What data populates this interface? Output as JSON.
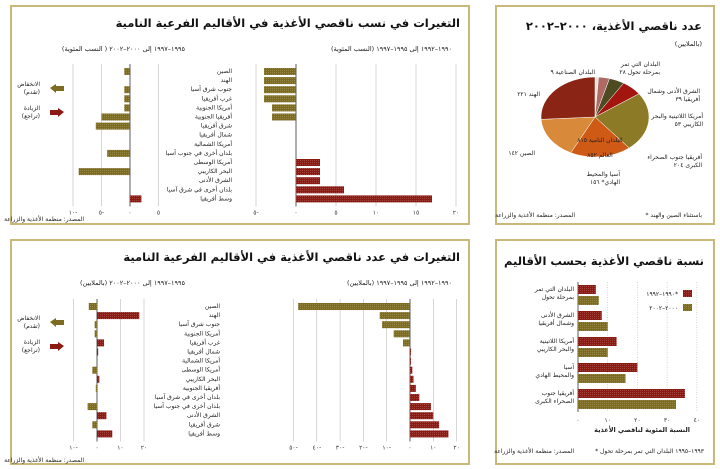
{
  "colors": {
    "increase": "#8b1a12",
    "decrease": "#7d6b1f",
    "border": "#c9b979"
  },
  "chart_data": [
    {
      "id": "pie",
      "type": "pie",
      "title": "عدد ناقصي الأغذية، ٢٠٠٠–٢٠٠٢",
      "subtitle": "(بالملايين)",
      "center_labels": [
        "البلدان النامية ٨١٥",
        "العالم ٨٥٢"
      ],
      "slices": [
        {
          "label": "البلدان الصناعية ٩",
          "value": 9,
          "color": "#e8e2d8"
        },
        {
          "label": "البلدان التي تمر بمرحلة تحول ٢٨",
          "value": 28,
          "color": "#b06a66"
        },
        {
          "label": "الشرق الأدنى وشمال أفريقيا ٣٩",
          "value": 39,
          "color": "#4e4a22"
        },
        {
          "label": "أمريكا اللاتينية والبحر الكاريبي ٥٣",
          "value": 53,
          "color": "#a3150f"
        },
        {
          "label": "أفريقيا جنوب الصحراء الكبرى ٢٠٤",
          "value": 204,
          "color": "#8c7a26"
        },
        {
          "label": "آسيا والمحيط الهادي* ١٥٦",
          "value": 156,
          "color": "#cf5a16"
        },
        {
          "label": "الصين ١٤٢",
          "value": 142,
          "color": "#d88a3a"
        },
        {
          "label": "الهند ٢٢١",
          "value": 221,
          "color": "#8a2414"
        }
      ],
      "footnote": "* باستثناء الصين والهند",
      "source": "المصدر: منظمة الأغذية والزراعة"
    },
    {
      "id": "proportion-changes",
      "type": "bar",
      "title": "التغيرات في نسب ناقصي الأغذية في الأقاليم الفرعية النامية",
      "categories": [
        "الصين",
        "الهند",
        "جنوب شرق آسيا",
        "غرب أفريقيا",
        "أمريكا الجنوبية",
        "أفريقيا الجنوبية",
        "شرق أفريقيا",
        "شمال أفريقيا",
        "أمريكا الشمالية",
        "بلدان أخرى في جنوب آسيا",
        "أمريكا الوسطى",
        "البحر الكاريبي",
        "الشرق الأدنى",
        "بلدان أخرى في شرق آسيا",
        "وسط أفريقيا"
      ],
      "series": [
        {
          "name": "١٩٩٠–١٩٩٢ إلى ١٩٩٥–١٩٩٧ (النسب المئوية)",
          "values": [
            -4,
            -4,
            -4,
            -4,
            -3,
            -3,
            0,
            0,
            0,
            0,
            3,
            3,
            3,
            6,
            17
          ],
          "xlim": [
            -5,
            20
          ],
          "ticks": [
            -5,
            0,
            5,
            10,
            15,
            20
          ],
          "tick_labels": [
            "٥-",
            "٠",
            "٥",
            "١٠",
            "١٥",
            "٢٠"
          ]
        },
        {
          "name": "١٩٩٥–١٩٩٧ إلى ٢٠٠٠–٢٠٠٢ ( النسب المئوية)",
          "values": [
            -1,
            0,
            -1,
            -1,
            -1,
            -5,
            -6,
            0,
            0,
            -4,
            0,
            -9,
            0,
            0,
            2
          ],
          "xlim": [
            -10,
            5
          ],
          "ticks": [
            -10,
            -5,
            0,
            5
          ],
          "tick_labels": [
            "١٠-",
            "٥-",
            "٠",
            "٥"
          ]
        }
      ],
      "legend": [
        {
          "label": "الانخفاض",
          "sub": "(تقدم)"
        },
        {
          "label": "الزيادة",
          "sub": "(تراجع)"
        }
      ],
      "source": "المصدر: منظمة الأغذية والزراعة"
    },
    {
      "id": "number-changes",
      "type": "bar",
      "title": "التغيرات في عدد ناقصي الأغذية في الأقاليم الفرعية النامية",
      "categories": [
        "الصين",
        "الهند",
        "جنوب شرق آسيا",
        "أمريكا الجنوبية",
        "غرب أفريقيا",
        "شمال أفريقيا",
        "أمريكا الشمالية",
        "أمريكا الوسطى",
        "البحر الكاريبي",
        "أفريقيا الجنوبية",
        "بلدان أخرى في شرق آسيا",
        "بلدان أخرى في جنوب آسيا",
        "الشرق الأدنى",
        "شرق أفريقيا",
        "وسط أفريقيا"
      ],
      "series": [
        {
          "name": "١٩٩٠–١٩٩٢ إلى ١٩٩٥–١٩٩٧ (بالملايين)",
          "values": [
            -48,
            -13,
            -12,
            -7,
            -3,
            0.3,
            0.3,
            1,
            1.5,
            2.5,
            4,
            9,
            10,
            12.5,
            16.5
          ],
          "xlim": [
            -50,
            20
          ],
          "ticks": [
            -50,
            -40,
            -30,
            -20,
            -10,
            0,
            10,
            20
          ],
          "tick_labels": [
            "٥٠-",
            "٤٠-",
            "٣٠-",
            "٢٠-",
            "١٠-",
            "٠",
            "١٠",
            "٢٠"
          ]
        },
        {
          "name": "١٩٩٥–١٩٩٧ إلى ٢٠٠٠–٢٠٠٢ (بالملايين)",
          "values": [
            -3.5,
            18,
            -1,
            -1,
            3,
            0.5,
            0,
            -2,
            1,
            -0.5,
            0,
            -4,
            4,
            -2,
            6.5
          ],
          "xlim": [
            -10,
            20
          ],
          "ticks": [
            -10,
            0,
            10,
            20
          ],
          "tick_labels": [
            "١٠-",
            "٠",
            "١٠",
            "٢٠"
          ]
        }
      ],
      "legend": [
        {
          "label": "الانخفاض",
          "sub": "(تقدم)"
        },
        {
          "label": "الزيادة",
          "sub": "(تراجع)"
        }
      ],
      "source": "المصدر: منظمة الأغذية والزراعة"
    },
    {
      "id": "regional-proportion",
      "type": "bar",
      "title": "نسبة ناقصي الأغذية بحسب الأقاليم",
      "categories": [
        "البلدان التي تمر|بمرحلة تحول",
        "الشرق الأدنى|وشمال أفريقيا",
        "أمريكا اللاتينية|والبحر الكاريبي",
        "آسيا|والمحيط الهادي",
        "أفريقيا جنوب|الصحراء الكبرى"
      ],
      "series": [
        {
          "name": "١٩٩٠–١٩٩٢*",
          "values": [
            6,
            8,
            13,
            20,
            36
          ],
          "color": "#8b1a12"
        },
        {
          "name": "٢٠٠٠–٢٠٠٢",
          "values": [
            7,
            10,
            10,
            16,
            33
          ],
          "color": "#7d6b1f"
        }
      ],
      "xlim": [
        0,
        40
      ],
      "ticks": [
        0,
        10,
        20,
        30,
        40
      ],
      "tick_labels": [
        "٠",
        "١٠",
        "٢٠",
        "٣٠",
        "٤٠"
      ],
      "xlabel": "النسبة المئوية لناقصي الأغذية",
      "footnote": "* ١٩٩٣–١٩٩٥ البلدان التي تمر بمرحلة تحول",
      "source": "المصدر: منظمة الأغذية والزراعة"
    }
  ]
}
